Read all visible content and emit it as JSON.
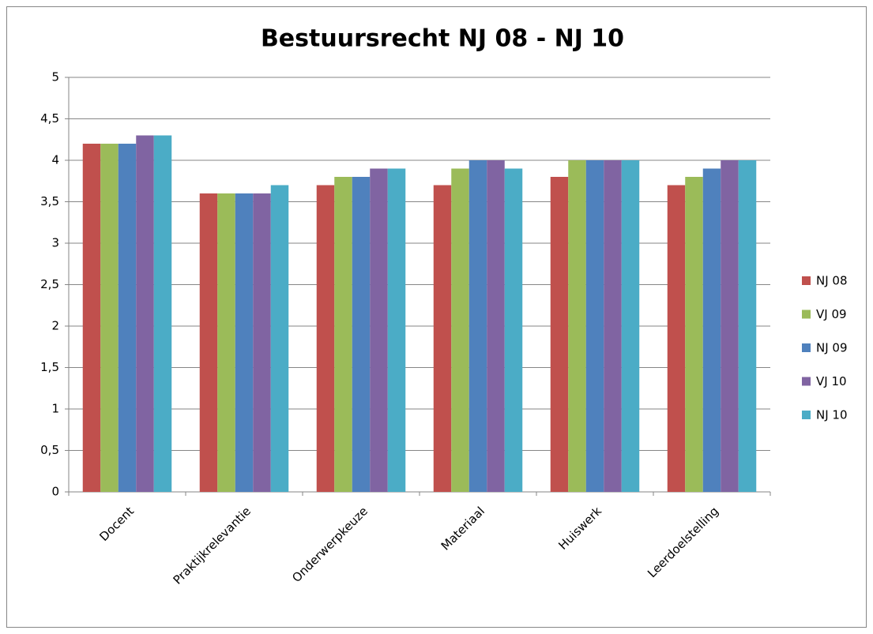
{
  "chart_data": {
    "type": "bar",
    "title": "Bestuursrecht NJ 08 - NJ 10",
    "categories": [
      "Docent",
      "Praktijkrelevantie",
      "Onderwerpkeuze",
      "Materiaal",
      "Huiswerk",
      "Leerdoelstelling"
    ],
    "series": [
      {
        "name": "NJ 08",
        "color": "#c0504d",
        "values": [
          4.2,
          3.6,
          3.7,
          3.7,
          3.8,
          3.7
        ]
      },
      {
        "name": "VJ 09",
        "color": "#9bbb59",
        "values": [
          4.2,
          3.6,
          3.8,
          3.9,
          4.0,
          3.8
        ]
      },
      {
        "name": "NJ 09",
        "color": "#4f81bd",
        "values": [
          4.2,
          3.6,
          3.8,
          4.0,
          4.0,
          3.9
        ]
      },
      {
        "name": "VJ 10",
        "color": "#8064a2",
        "values": [
          4.3,
          3.6,
          3.9,
          4.0,
          4.0,
          4.0
        ]
      },
      {
        "name": "NJ 10",
        "color": "#4bacc6",
        "values": [
          4.3,
          3.7,
          3.9,
          3.9,
          4.0,
          4.0
        ]
      }
    ],
    "ylim": [
      0,
      5
    ],
    "yticks": [
      0,
      {
        "value": 0.5,
        "label": "0,5"
      },
      1,
      {
        "value": 1.5,
        "label": "1,5"
      },
      2,
      {
        "value": 2.5,
        "label": "2,5"
      },
      3,
      {
        "value": 3.5,
        "label": "3,5"
      },
      4,
      {
        "value": 4.5,
        "label": "4,5"
      },
      5
    ],
    "grid": true,
    "legend": "right"
  }
}
